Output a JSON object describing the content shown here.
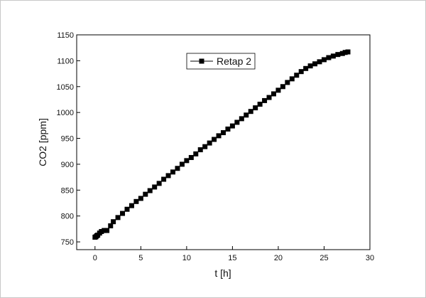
{
  "chart_data": {
    "type": "scatter",
    "title": "",
    "xlabel": "t [h]",
    "ylabel": "CO2 [ppm]",
    "xlim": [
      -2,
      30
    ],
    "ylim": [
      735,
      1150
    ],
    "x_ticks": [
      0,
      5,
      10,
      15,
      20,
      25,
      30
    ],
    "y_ticks": [
      750,
      800,
      850,
      900,
      950,
      1000,
      1050,
      1100,
      1150
    ],
    "grid": false,
    "legend_position": "top-center",
    "marker": "square",
    "series_color": "#000000",
    "series": [
      {
        "name": "Retap 2",
        "x": [
          0.0,
          0.1,
          0.2,
          0.3,
          0.5,
          0.7,
          1.0,
          1.3,
          1.7,
          2.0,
          2.5,
          3.0,
          3.5,
          4.0,
          4.5,
          5.0,
          5.5,
          6.0,
          6.5,
          7.0,
          7.5,
          8.0,
          8.5,
          9.0,
          9.5,
          10.0,
          10.5,
          11.0,
          11.5,
          12.0,
          12.5,
          13.0,
          13.5,
          14.0,
          14.5,
          15.0,
          15.5,
          16.0,
          16.5,
          17.0,
          17.5,
          18.0,
          18.5,
          19.0,
          19.5,
          20.0,
          20.5,
          21.0,
          21.5,
          22.0,
          22.5,
          23.0,
          23.5,
          24.0,
          24.5,
          25.0,
          25.5,
          26.0,
          26.5,
          27.0,
          27.3,
          27.6
        ],
        "y": [
          759,
          760,
          762,
          763,
          767,
          770,
          772,
          772,
          781,
          789,
          797,
          805,
          813,
          820,
          828,
          834,
          842,
          849,
          856,
          863,
          871,
          878,
          885,
          892,
          900,
          907,
          913,
          920,
          928,
          934,
          941,
          948,
          955,
          961,
          968,
          974,
          981,
          988,
          995,
          1002,
          1009,
          1016,
          1023,
          1029,
          1036,
          1043,
          1050,
          1058,
          1065,
          1072,
          1079,
          1085,
          1090,
          1094,
          1098,
          1102,
          1106,
          1109,
          1112,
          1114,
          1116,
          1117
        ]
      }
    ]
  }
}
